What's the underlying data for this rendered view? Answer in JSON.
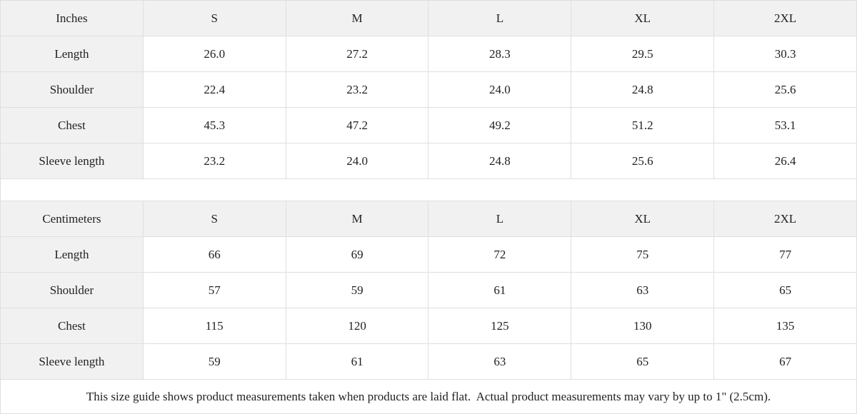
{
  "tables": [
    {
      "unit_label": "Inches",
      "sizes": [
        "S",
        "M",
        "L",
        "XL",
        "2XL"
      ],
      "rows": [
        {
          "label": "Length",
          "values": [
            "26.0",
            "27.2",
            "28.3",
            "29.5",
            "30.3"
          ]
        },
        {
          "label": "Shoulder",
          "values": [
            "22.4",
            "23.2",
            "24.0",
            "24.8",
            "25.6"
          ]
        },
        {
          "label": "Chest",
          "values": [
            "45.3",
            "47.2",
            "49.2",
            "51.2",
            "53.1"
          ]
        },
        {
          "label": "Sleeve length",
          "values": [
            "23.2",
            "24.0",
            "24.8",
            "25.6",
            "26.4"
          ]
        }
      ]
    },
    {
      "unit_label": "Centimeters",
      "sizes": [
        "S",
        "M",
        "L",
        "XL",
        "2XL"
      ],
      "rows": [
        {
          "label": "Length",
          "values": [
            "66",
            "69",
            "72",
            "75",
            "77"
          ]
        },
        {
          "label": "Shoulder",
          "values": [
            "57",
            "59",
            "61",
            "63",
            "65"
          ]
        },
        {
          "label": "Chest",
          "values": [
            "115",
            "120",
            "125",
            "130",
            "135"
          ]
        },
        {
          "label": "Sleeve length",
          "values": [
            "59",
            "61",
            "63",
            "65",
            "67"
          ]
        }
      ]
    }
  ],
  "footer_note": "This size guide shows product measurements taken when products are laid flat.  Actual product measurements may vary by up to 1\" (2.5cm).",
  "colors": {
    "header_background": "#f1f1f1",
    "border": "#dfdfdf",
    "text": "#222222",
    "cell_background": "#ffffff"
  }
}
